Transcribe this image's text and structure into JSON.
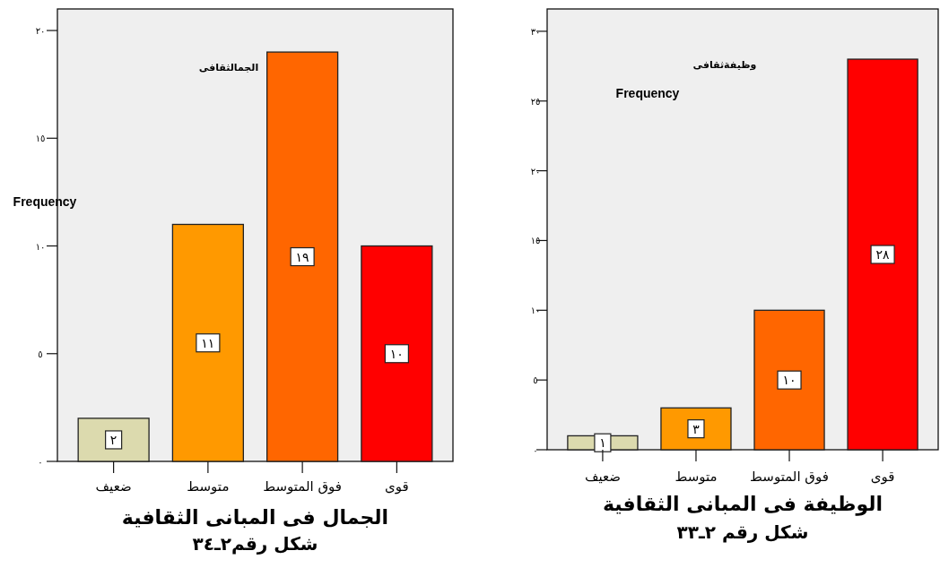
{
  "chart_data": [
    {
      "type": "bar",
      "title": "الجمال فى المبانى الثقافية",
      "subtitle": "شكل رقم٢ـ٣٤",
      "ylabel": "Frequency",
      "annotations": [
        "الجمالثقافى"
      ],
      "categories": [
        "ضعيف",
        "متوسط",
        "فوق المتوسط",
        "قوى"
      ],
      "values": [
        2,
        11,
        19,
        10
      ],
      "colors": [
        "#dcdaae",
        "#ff9900",
        "#ff6600",
        "#ff0000"
      ],
      "value_labels": [
        "٢",
        "١١",
        "١٩",
        "١٠"
      ],
      "ylim": [
        0,
        21
      ],
      "yticks": [
        {
          "value": 0,
          "label": "٠"
        },
        {
          "value": 5,
          "label": "٥"
        },
        {
          "value": 10,
          "label": "١٠"
        },
        {
          "value": 15,
          "label": "١٥"
        },
        {
          "value": 20,
          "label": "٢٠"
        }
      ]
    },
    {
      "type": "bar",
      "title": "الوظيفة فى المبانى الثقافية",
      "subtitle": "شكل رقم ٢ـ٣٣",
      "ylabel": "Frequency",
      "annotations": [
        "وظيفةثقافى"
      ],
      "categories": [
        "ضعيف",
        "متوسط",
        "فوق المتوسط",
        "قوى"
      ],
      "values": [
        1,
        3,
        10,
        28
      ],
      "colors": [
        "#dcdaae",
        "#ff9900",
        "#ff6600",
        "#ff0000"
      ],
      "value_labels": [
        "١",
        "٣",
        "١٠",
        "٢٨"
      ],
      "ylim": [
        0,
        31.6
      ],
      "yticks": [
        {
          "value": 0,
          "label": "٠"
        },
        {
          "value": 5,
          "label": "٥"
        },
        {
          "value": 10,
          "label": "١٠"
        },
        {
          "value": 15,
          "label": "١٥"
        },
        {
          "value": 20,
          "label": "٢٠"
        },
        {
          "value": 25,
          "label": "٢٥"
        },
        {
          "value": 30,
          "label": "٣٠"
        }
      ]
    }
  ]
}
